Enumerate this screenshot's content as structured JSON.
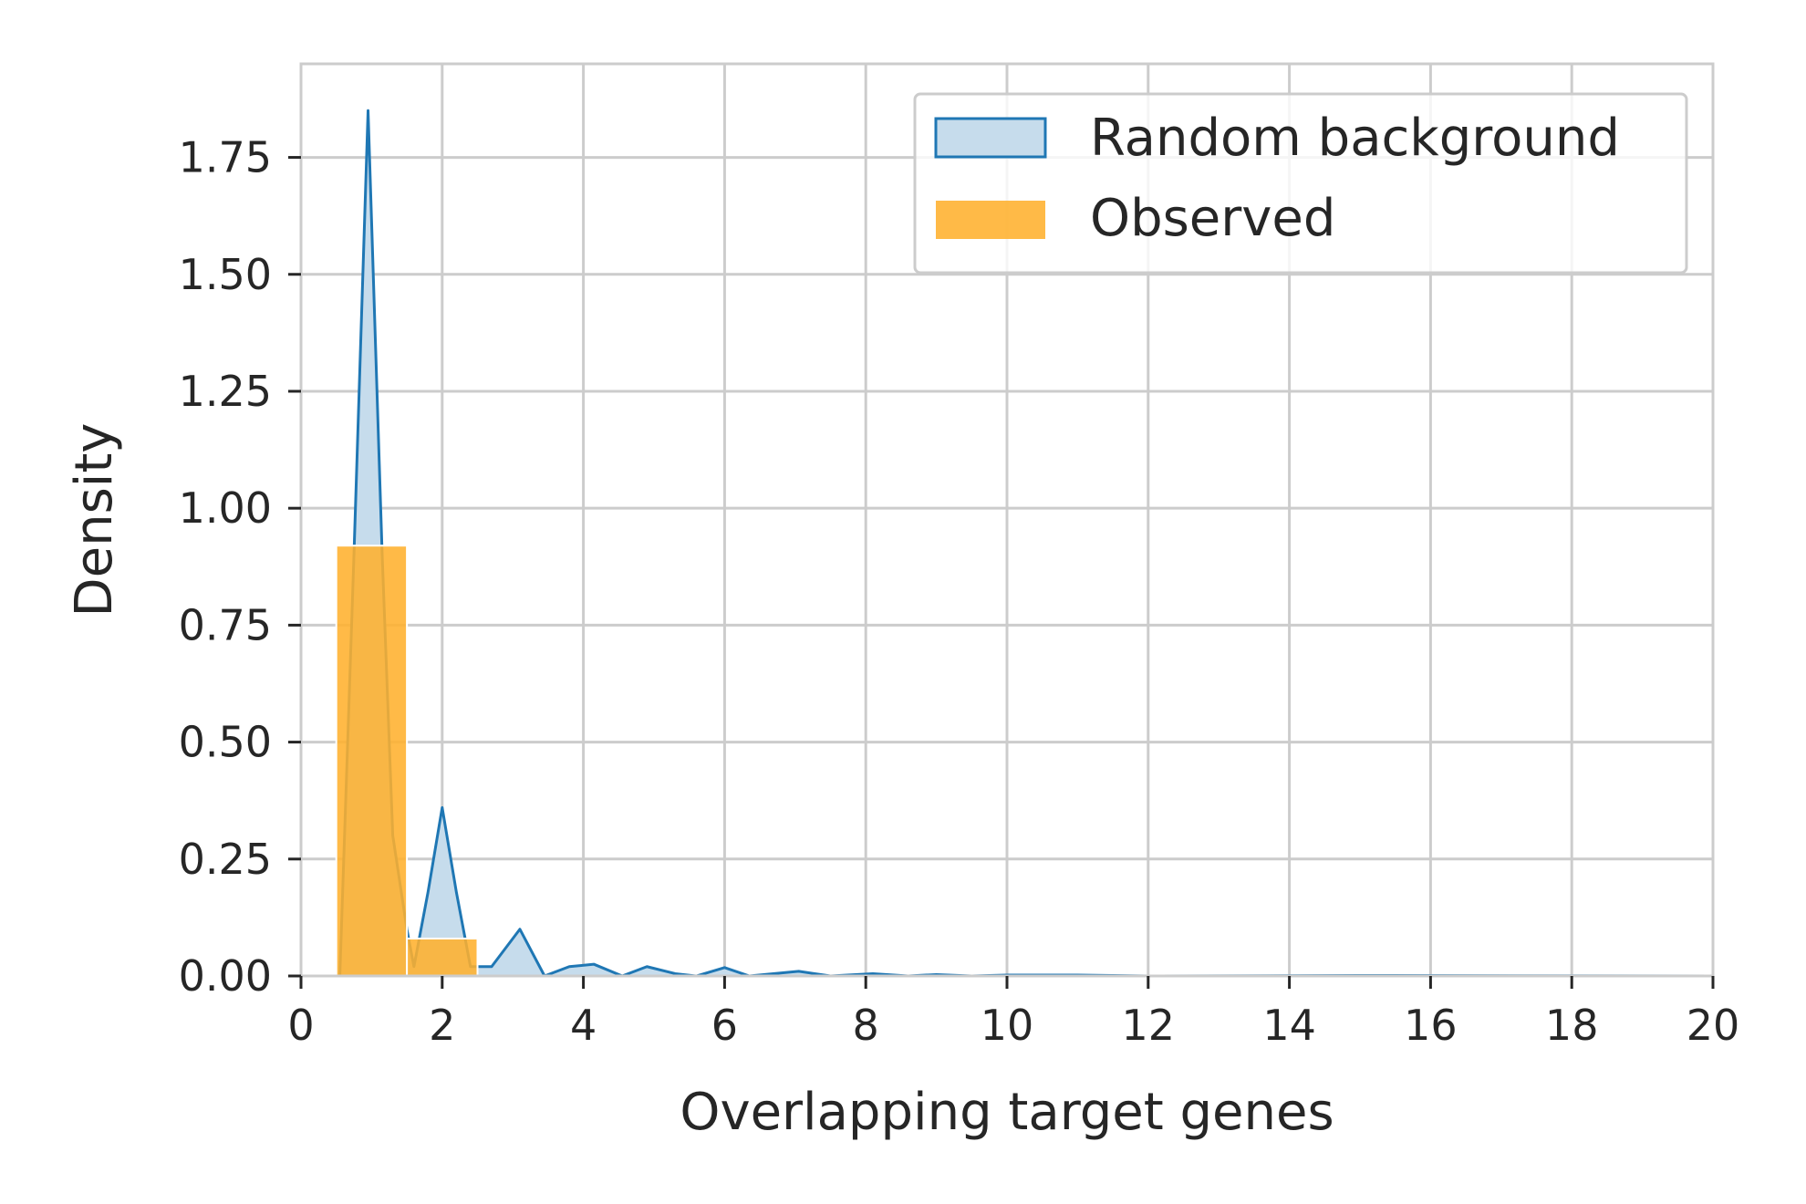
{
  "chart_data": {
    "type": "area",
    "title": "",
    "xlabel": "Overlapping target genes",
    "ylabel": "Density",
    "xlim": [
      0,
      20
    ],
    "ylim": [
      0,
      1.95
    ],
    "xticks": [
      0,
      2,
      4,
      6,
      8,
      10,
      12,
      14,
      16,
      18,
      20
    ],
    "yticks": [
      0.0,
      0.25,
      0.5,
      0.75,
      1.0,
      1.25,
      1.5,
      1.75
    ],
    "xtick_labels": [
      "0",
      "2",
      "4",
      "6",
      "8",
      "10",
      "12",
      "14",
      "16",
      "18",
      "20"
    ],
    "ytick_labels": [
      "0.00",
      "0.25",
      "0.50",
      "0.75",
      "1.00",
      "1.25",
      "1.50",
      "1.75"
    ],
    "grid": true,
    "legend_position": "top-right",
    "series": [
      {
        "name": "Random background",
        "kind": "filled-density-line",
        "line_color": "#1f77b4",
        "fill_color": "#c6dcec",
        "points": [
          [
            0.55,
            0.0
          ],
          [
            0.75,
            0.9
          ],
          [
            0.95,
            1.85
          ],
          [
            1.15,
            0.9
          ],
          [
            1.3,
            0.3
          ],
          [
            1.5,
            0.1
          ],
          [
            1.6,
            0.02
          ],
          [
            1.8,
            0.18
          ],
          [
            2.0,
            0.36
          ],
          [
            2.2,
            0.18
          ],
          [
            2.4,
            0.02
          ],
          [
            2.7,
            0.02
          ],
          [
            3.1,
            0.1
          ],
          [
            3.45,
            0.0
          ],
          [
            3.8,
            0.02
          ],
          [
            4.15,
            0.025
          ],
          [
            4.55,
            0.0
          ],
          [
            4.9,
            0.02
          ],
          [
            5.3,
            0.005
          ],
          [
            5.6,
            0.0
          ],
          [
            6.0,
            0.018
          ],
          [
            6.35,
            0.0
          ],
          [
            7.05,
            0.01
          ],
          [
            7.5,
            0.0
          ],
          [
            8.1,
            0.005
          ],
          [
            8.6,
            0.0
          ],
          [
            9.0,
            0.003
          ],
          [
            9.5,
            0.0
          ],
          [
            10.0,
            0.002
          ],
          [
            11.0,
            0.002
          ],
          [
            12.0,
            0.0
          ],
          [
            15.0,
            0.001
          ],
          [
            20.0,
            0.0
          ]
        ]
      },
      {
        "name": "Observed",
        "kind": "histogram",
        "color": "#ffb02e",
        "opacity": 0.88,
        "bins": [
          {
            "x0": 0.5,
            "x1": 1.5,
            "value": 0.92
          },
          {
            "x0": 1.5,
            "x1": 2.5,
            "value": 0.08
          }
        ]
      }
    ]
  }
}
